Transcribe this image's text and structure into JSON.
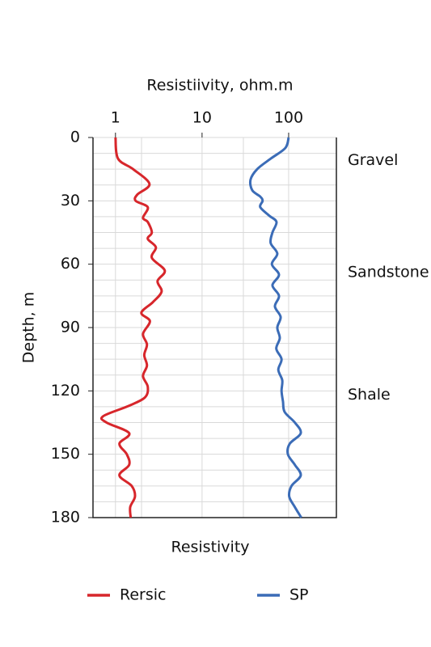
{
  "chart_data": {
    "type": "well-log",
    "title": "Resistiivity, ohm.m",
    "xlabel": "Resistivity",
    "ylabel": "Depth, m",
    "xscale": "log",
    "xlim": [
      0.55,
      356
    ],
    "xticks": [
      1,
      10,
      100
    ],
    "ylim": [
      0,
      180
    ],
    "yticks": [
      0,
      30,
      60,
      90,
      120,
      150,
      180
    ],
    "grid": true,
    "xgrid": [
      1,
      2,
      10,
      30,
      100
    ],
    "ygrid": [
      0,
      7.5,
      15,
      22.5,
      30,
      37.5,
      45,
      52.5,
      60,
      67.5,
      75,
      82.5,
      90,
      97.5,
      105,
      112.5,
      120,
      127.5,
      135,
      142.5,
      150,
      157.5,
      165,
      172.5,
      180
    ],
    "legend": "bottom",
    "series": [
      {
        "name": "Rersic",
        "color": "#d7262b",
        "depth": [
          0,
          10,
          15,
          22,
          27,
          30,
          33,
          38,
          40,
          45,
          48,
          52,
          57,
          63,
          68,
          73,
          78,
          83,
          87,
          93,
          98,
          103,
          108,
          113,
          118,
          123,
          127,
          132,
          135,
          140,
          145,
          150,
          155,
          160,
          165,
          170,
          175,
          180
        ],
        "values": [
          1.0,
          1.07,
          1.6,
          2.47,
          1.79,
          1.71,
          2.36,
          2.08,
          2.36,
          2.63,
          2.36,
          2.93,
          2.63,
          3.71,
          3.06,
          3.41,
          2.7,
          1.99,
          2.5,
          2.08,
          2.31,
          2.15,
          2.31,
          2.08,
          2.36,
          2.2,
          1.44,
          0.72,
          0.79,
          1.44,
          1.11,
          1.35,
          1.44,
          1.11,
          1.54,
          1.68,
          1.48,
          1.5
        ]
      },
      {
        "name": "SP",
        "color": "#3b6cb7",
        "depth": [
          0,
          5,
          10,
          15,
          20,
          25,
          28,
          30,
          33,
          37,
          40,
          45,
          50,
          55,
          60,
          65,
          70,
          75,
          80,
          85,
          90,
          95,
          100,
          105,
          110,
          115,
          120,
          125,
          130,
          135,
          140,
          145,
          150,
          155,
          160,
          165,
          170,
          175,
          180
        ],
        "values": [
          100,
          91.5,
          62.2,
          43.3,
          36.3,
          38,
          47,
          50,
          47,
          59.6,
          72.4,
          65,
          62,
          74,
          64,
          77.4,
          65,
          77.4,
          69.4,
          80.8,
          74,
          79,
          72,
          82.8,
          76,
          84.4,
          82.8,
          86,
          90,
          118,
          138,
          103,
          98,
          118,
          138,
          108,
          101.5,
          118,
          140
        ]
      }
    ],
    "annotations": [
      {
        "text": "Gravel",
        "depth": 11
      },
      {
        "text": "Sandstone",
        "depth": 64
      },
      {
        "text": "Shale",
        "depth": 122
      }
    ]
  }
}
